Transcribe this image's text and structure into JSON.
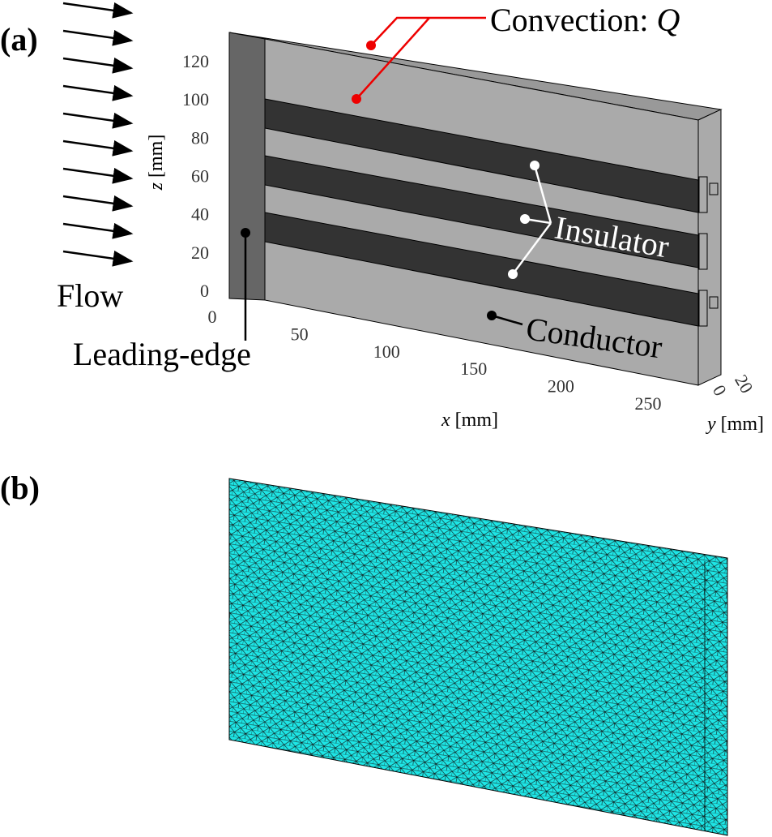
{
  "panel_a": {
    "label": "(a)",
    "annotations": {
      "convection": "Convection: ",
      "convection_symbol": "Q",
      "insulator": "Insulator",
      "conductor": "Conductor",
      "flow": "Flow",
      "leading_edge": "Leading-edge"
    },
    "z_axis": {
      "symbol": "z",
      "unit": "[mm]",
      "ticks": [
        0,
        20,
        40,
        60,
        80,
        100,
        120
      ]
    },
    "x_axis": {
      "symbol": "x",
      "unit": "[mm]",
      "ticks": [
        0,
        50,
        100,
        150,
        200,
        250
      ]
    },
    "y_axis": {
      "symbol": "y",
      "unit": "[mm]",
      "ticks": [
        0,
        20
      ]
    }
  },
  "panel_b": {
    "label": "(b)"
  }
}
